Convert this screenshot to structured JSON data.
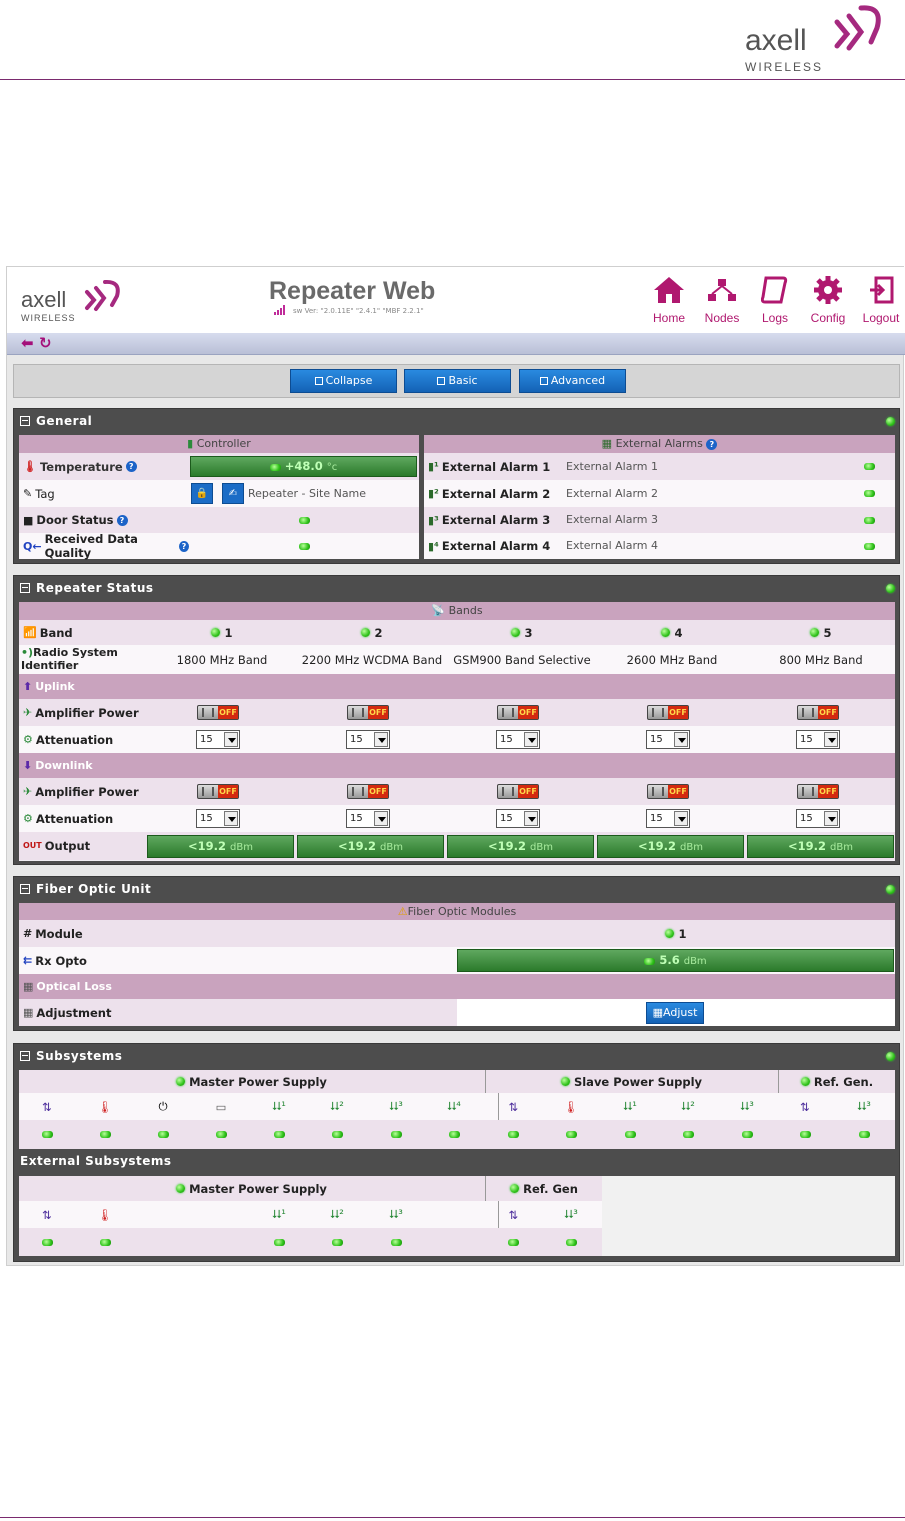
{
  "doc": {
    "logo_word": "axell",
    "logo_sub": "WIRELESS"
  },
  "app": {
    "logo_word": "axell",
    "logo_sub": "WIRELESS",
    "title": "Repeater Web",
    "version": "sw Ver: \"2.0.11E\" \"2.4.1\" \"MBF 2.2.1\"",
    "nav": [
      "Home",
      "Nodes",
      "Logs",
      "Config",
      "Logout"
    ],
    "view_buttons": [
      "Collapse",
      "Basic",
      "Advanced"
    ]
  },
  "general": {
    "title": "General",
    "controller_header": "Controller",
    "alarms_header": "External Alarms",
    "temperature_label": "Temperature",
    "temperature_value": "+48.0",
    "temperature_unit": "°c",
    "tag_label": "Tag",
    "tag_value": "Repeater - Site Name",
    "door_label": "Door Status",
    "rdq_label": "Received Data Quality",
    "alarms": [
      {
        "label": "External Alarm 1",
        "value": "External Alarm 1"
      },
      {
        "label": "External Alarm 2",
        "value": "External Alarm 2"
      },
      {
        "label": "External Alarm 3",
        "value": "External Alarm 3"
      },
      {
        "label": "External Alarm 4",
        "value": "External Alarm 4"
      }
    ]
  },
  "repeater": {
    "title": "Repeater Status",
    "bands_header": "Bands",
    "band_label": "Band",
    "rsi_label_1": "Radio System",
    "rsi_label_2": "Identifier",
    "bands": [
      "1",
      "2",
      "3",
      "4",
      "5"
    ],
    "rsi": [
      "1800 MHz Band",
      "2200 MHz WCDMA Band",
      "GSM900 Band Selective",
      "2600 MHz Band",
      "800 MHz Band"
    ],
    "uplink": "Uplink",
    "downlink": "Downlink",
    "amp_label": "Amplifier Power",
    "att_label": "Attenuation",
    "off": "OFF",
    "att_value": "15",
    "output_label": "Output",
    "output_value": "<19.2",
    "output_unit": "dBm"
  },
  "fiber": {
    "title": "Fiber Optic Unit",
    "modules_header": "Fiber Optic Modules",
    "module_label": "Module",
    "module_value": "1",
    "rx_label": "Rx Opto",
    "rx_value": "5.6",
    "rx_unit": "dBm",
    "loss_label": "Optical Loss",
    "adj_label": "Adjustment",
    "adj_button": "Adjust"
  },
  "subsystems": {
    "title": "Subsystems",
    "master": "Master Power Supply",
    "slave": "Slave Power Supply",
    "refgen": "Ref. Gen.",
    "external_title": "External Subsystems",
    "ext_master": "Master Power Supply",
    "ext_refgen": "Ref. Gen"
  },
  "colors": {
    "brand": "#b0186f",
    "status_green": "#2fc21a",
    "panel_dark": "#4d4d4d"
  }
}
